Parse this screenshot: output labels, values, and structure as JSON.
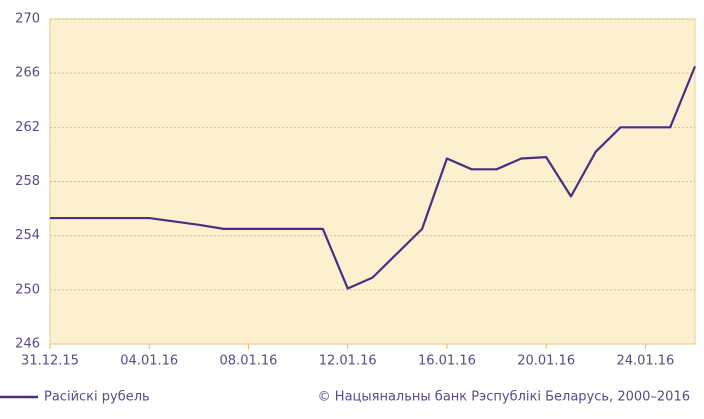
{
  "chart_data": {
    "type": "line",
    "x": [
      "31.12.15",
      "01.01.16",
      "02.01.16",
      "03.01.16",
      "04.01.16",
      "05.01.16",
      "06.01.16",
      "07.01.16",
      "08.01.16",
      "09.01.16",
      "10.01.16",
      "11.01.16",
      "12.01.16",
      "13.01.16",
      "14.01.16",
      "15.01.16",
      "16.01.16",
      "17.01.16",
      "18.01.16",
      "19.01.16",
      "20.01.16",
      "21.01.16",
      "22.01.16",
      "23.01.16",
      "24.01.16",
      "25.01.16",
      "26.01.16"
    ],
    "series": [
      {
        "name": "Расійскі рубель",
        "color": "#4b2e83",
        "values": [
          255.3,
          255.3,
          255.3,
          255.3,
          255.3,
          255.05,
          254.8,
          254.5,
          254.5,
          254.5,
          254.5,
          254.5,
          250.1,
          250.9,
          252.7,
          254.5,
          259.7,
          258.9,
          258.9,
          259.7,
          259.8,
          256.9,
          260.2,
          262.0,
          262.0,
          262.0,
          266.5
        ]
      }
    ],
    "xlim": [
      "31.12.15",
      "26.01.16"
    ],
    "xticks": [
      "31.12.15",
      "04.01.16",
      "08.01.16",
      "12.01.16",
      "16.01.16",
      "20.01.16",
      "24.01.16"
    ],
    "ylim": [
      246,
      270
    ],
    "yticks": [
      246,
      250,
      254,
      258,
      262,
      266,
      270
    ],
    "grid": true,
    "legend": "bottom-left",
    "footer": "© Нацыянальны банк Рэспублікі Беларусь, 2000–2016"
  }
}
